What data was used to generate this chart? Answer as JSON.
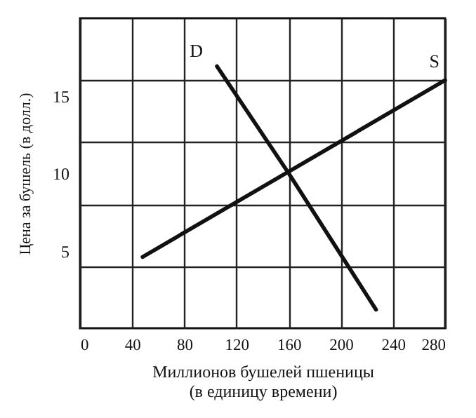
{
  "chart_data": {
    "type": "line",
    "xlabel": "Миллионов бушелей пшеницы\n(в единицу времени)",
    "ylabel": "Цена за бушель (в долл.)",
    "xlim": [
      0,
      280
    ],
    "xticks": [
      0,
      40,
      80,
      120,
      160,
      200,
      240,
      280
    ],
    "ylim": [
      0,
      20
    ],
    "yticks": [
      {
        "value": 4,
        "label": null
      },
      5,
      {
        "value": 8,
        "label": null
      },
      10,
      {
        "value": 12,
        "label": null
      },
      15,
      {
        "value": 16,
        "label": null
      }
    ],
    "grid": true,
    "marker": "none",
    "line_style": "solid",
    "series": [
      {
        "name": "D",
        "color": "#111111",
        "x": [
          105,
          160,
          227
        ],
        "values": [
          16.9,
          10,
          1.2
        ]
      },
      {
        "name": "S",
        "color": "#111111",
        "x": [
          48,
          280
        ],
        "values": [
          4.6,
          16
        ]
      }
    ]
  }
}
